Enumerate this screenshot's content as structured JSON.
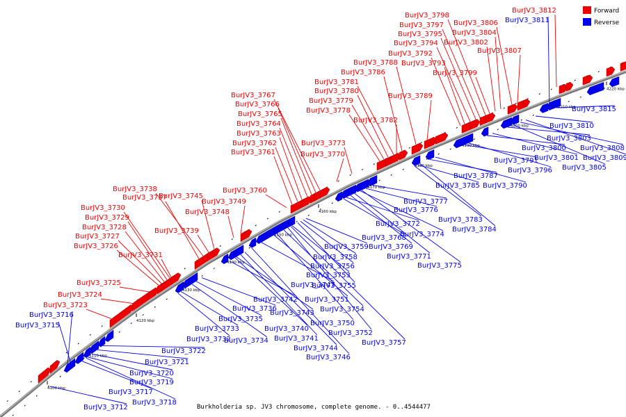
{
  "caption": "Burkholderia sp. JV3 chromosome, complete genome. - 0..4544477",
  "legend": [
    {
      "label": "Forward",
      "color": "#ee0000"
    },
    {
      "label": "Reverse",
      "color": "#0000ee"
    }
  ],
  "colors": {
    "forward": "#ee0000",
    "reverse": "#0000ee",
    "axis": "#888888"
  },
  "kbp_ticks": [
    "4100 kbp",
    "4110 kbp",
    "4120 kbp",
    "4130 kbp",
    "4140 kbp",
    "4150 kbp",
    "4160 kbp",
    "4170 kbp",
    "4180 kbp",
    "4190 kbp",
    "4200 kbp",
    "4210 kbp",
    "4220 kbp"
  ],
  "forward_labels": [
    "BurJV3_3723",
    "BurJV3_3724",
    "BurJV3_3725",
    "BurJV3_3726",
    "BurJV3_3727",
    "BurJV3_3728",
    "BurJV3_3729",
    "BurJV3_3730",
    "BurJV3_3737",
    "BurJV3_3738",
    "BurJV3_3731",
    "BurJV3_3739",
    "BurJV3_3745",
    "BurJV3_3748",
    "BurJV3_3749",
    "BurJV3_3760",
    "BurJV3_3761",
    "BurJV3_3762",
    "BurJV3_3763",
    "BurJV3_3764",
    "BurJV3_3765",
    "BurJV3_3766",
    "BurJV3_3767",
    "BurJV3_3770",
    "BurJV3_3773",
    "BurJV3_3778",
    "BurJV3_3779",
    "BurJV3_3780",
    "BurJV3_3781",
    "BurJV3_3782",
    "BurJV3_3786",
    "BurJV3_3788",
    "BurJV3_3789",
    "BurJV3_3792",
    "BurJV3_3793",
    "BurJV3_3794",
    "BurJV3_3795",
    "BurJV3_3797",
    "BurJV3_3798",
    "BurJV3_3799",
    "BurJV3_3802",
    "BurJV3_3804",
    "BurJV3_3806",
    "BurJV3_3807",
    "BurJV3_3812"
  ],
  "reverse_labels": [
    "BurJV3_3716",
    "BurJV3_3715",
    "BurJV3_3722",
    "BurJV3_3721",
    "BurJV3_3720",
    "BurJV3_3719",
    "BurJV3_3717",
    "BurJV3_3718",
    "BurJV3_3712",
    "BurJV3_3733",
    "BurJV3_3732",
    "BurJV3_3736",
    "BurJV3_3735",
    "BurJV3_3734",
    "BurJV3_3742",
    "BurJV3_3743",
    "BurJV3_3740",
    "BurJV3_3741",
    "BurJV3_3744",
    "BurJV3_3746",
    "BurJV3_3747",
    "BurJV3_3751",
    "BurJV3_3750",
    "BurJV3_3754",
    "BurJV3_3752",
    "BurJV3_3753",
    "BurJV3_3755",
    "BurJV3_3756",
    "BurJV3_3757",
    "BurJV3_3758",
    "BurJV3_3759",
    "BurJV3_3768",
    "BurJV3_3769",
    "BurJV3_3771",
    "BurJV3_3775",
    "BurJV3_3772",
    "BurJV3_3774",
    "BurJV3_3776",
    "BurJV3_3777",
    "BurJV3_3783",
    "BurJV3_3784",
    "BurJV3_3785",
    "BurJV3_3787",
    "BurJV3_3790",
    "BurJV3_3791",
    "BurJV3_3796",
    "BurJV3_3800",
    "BurJV3_3801",
    "BurJV3_3803",
    "BurJV3_3805",
    "BurJV3_3808",
    "BurJV3_3809",
    "BurJV3_3810",
    "BurJV3_3811",
    "BurJV3_3815"
  ]
}
